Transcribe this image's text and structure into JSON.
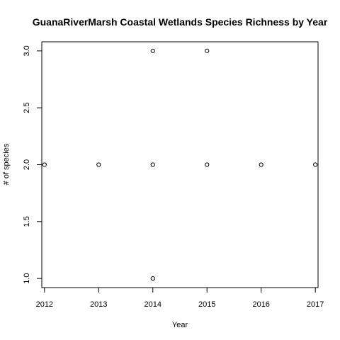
{
  "chart_data": {
    "type": "scatter",
    "title": "GuanaRiverMarsh Coastal Wetlands Species Richness by Year",
    "xlabel": "Year",
    "ylabel": "# of species",
    "x_ticks": [
      2012,
      2013,
      2014,
      2015,
      2016,
      2017
    ],
    "y_ticks": [
      "1.0",
      "1.5",
      "2.0",
      "2.5",
      "3.0"
    ],
    "xlim": [
      2011.95,
      2017.05
    ],
    "ylim": [
      0.92,
      3.08
    ],
    "grid": false,
    "legend": "none",
    "marker": "open-circle",
    "color": "#000000",
    "points": [
      {
        "x": 2012,
        "y": 2
      },
      {
        "x": 2013,
        "y": 2
      },
      {
        "x": 2014,
        "y": 3
      },
      {
        "x": 2014,
        "y": 2
      },
      {
        "x": 2014,
        "y": 1
      },
      {
        "x": 2015,
        "y": 3
      },
      {
        "x": 2015,
        "y": 2
      },
      {
        "x": 2016,
        "y": 2
      },
      {
        "x": 2017,
        "y": 2
      }
    ]
  }
}
